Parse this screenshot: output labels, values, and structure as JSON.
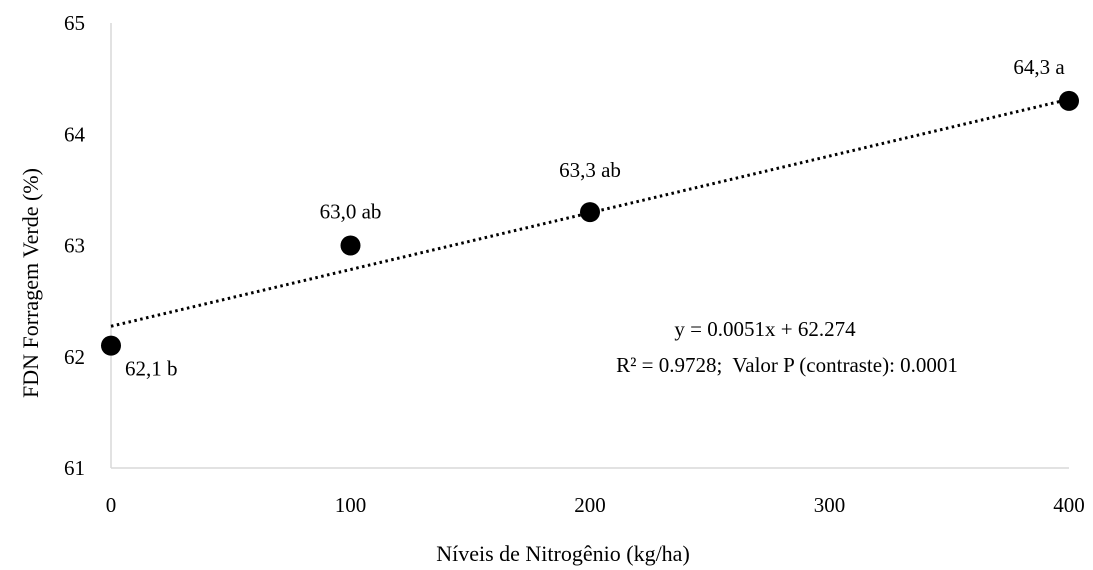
{
  "chart_data": {
    "type": "scatter",
    "xlabel": "Níveis de Nitrogênio (kg/ha)",
    "ylabel": "FDN Forragem Verde (%)",
    "xlim": [
      0,
      400
    ],
    "ylim": [
      61,
      65
    ],
    "x_ticks": [
      "0",
      "100",
      "200",
      "300",
      "400"
    ],
    "y_ticks": [
      "61",
      "62",
      "63",
      "64",
      "65"
    ],
    "grid": false,
    "points": [
      {
        "x": 0,
        "y": 62.1,
        "label": "62,1 b"
      },
      {
        "x": 100,
        "y": 63.0,
        "label": "63,0 ab"
      },
      {
        "x": 200,
        "y": 63.3,
        "label": "63,3 ab"
      },
      {
        "x": 400,
        "y": 64.3,
        "label": "64,3 a"
      }
    ],
    "trendline": {
      "slope": 0.0051,
      "intercept": 62.274,
      "style": "dotted"
    },
    "equation": "y = 0.0051x + 62.274",
    "stats": "R² = 0.9728;  Valor P (contraste): 0.0001"
  }
}
